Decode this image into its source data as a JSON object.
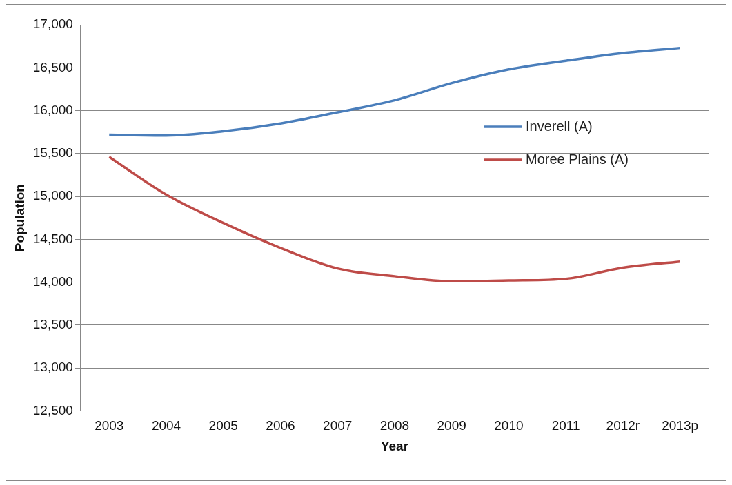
{
  "chart_data": {
    "type": "line",
    "xlabel": "Year",
    "ylabel": "Population",
    "categories": [
      "2003",
      "2004",
      "2005",
      "2006",
      "2007",
      "2008",
      "2009",
      "2010",
      "2011",
      "2012r",
      "2013p"
    ],
    "series": [
      {
        "name": "Inverell (A)",
        "color": "#4a7ebb",
        "values": [
          15720,
          15710,
          15760,
          15850,
          15980,
          16120,
          16320,
          16480,
          16580,
          16670,
          16730
        ]
      },
      {
        "name": "Moree Plains (A)",
        "color": "#be4b48",
        "values": [
          15460,
          15020,
          14690,
          14400,
          14160,
          14070,
          14010,
          14020,
          14040,
          14170,
          14240
        ]
      }
    ],
    "ylim": [
      12500,
      17000
    ],
    "yticks": [
      {
        "value": 12500,
        "label": "12,500"
      },
      {
        "value": 13000,
        "label": "13,000"
      },
      {
        "value": 13500,
        "label": "13,500"
      },
      {
        "value": 14000,
        "label": "14,000"
      },
      {
        "value": 14500,
        "label": "14,500"
      },
      {
        "value": 15000,
        "label": "15,000"
      },
      {
        "value": 15500,
        "label": "15,500"
      },
      {
        "value": 16000,
        "label": "16,000"
      },
      {
        "value": 16500,
        "label": "16,500"
      },
      {
        "value": 17000,
        "label": "17,000"
      }
    ],
    "grid": "y",
    "legend": "right",
    "marker": "none",
    "line_style": "solid"
  }
}
